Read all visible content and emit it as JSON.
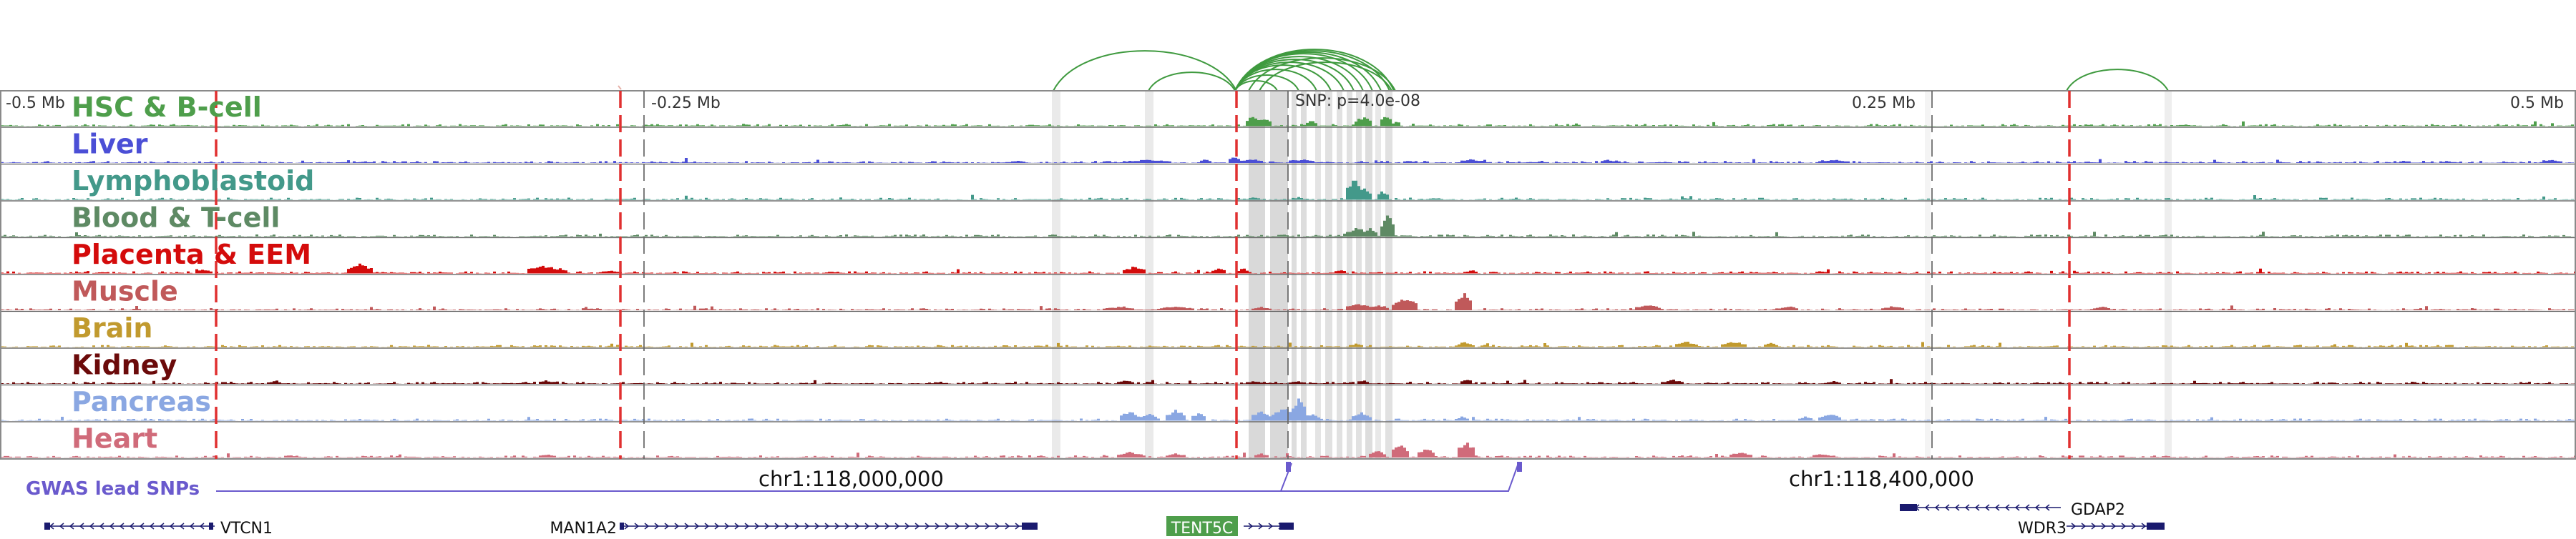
{
  "scale_labels": [
    "-0.5 Mb",
    "-0.25 Mb",
    "0.25 Mb",
    "0.5 Mb"
  ],
  "snp_label": "SNP: p=4.0e-08",
  "tracks": [
    {
      "name": "HSC & B-cell",
      "color": "#4e9e4b"
    },
    {
      "name": "Liver",
      "color": "#4b4fd6"
    },
    {
      "name": "Lymphoblastoid",
      "color": "#43998a"
    },
    {
      "name": "Blood & T-cell",
      "color": "#5e8a64"
    },
    {
      "name": "Placenta & EEM",
      "color": "#d40b0b"
    },
    {
      "name": "Muscle",
      "color": "#c0595a"
    },
    {
      "name": "Brain",
      "color": "#c19a2e"
    },
    {
      "name": "Kidney",
      "color": "#6b0a0a"
    },
    {
      "name": "Pancreas",
      "color": "#8aa7e2"
    },
    {
      "name": "Heart",
      "color": "#d06b7a"
    }
  ],
  "gwas_label": "GWAS lead SNPs",
  "coordinates": [
    "chr1:118,000,000",
    "chr1:118,400,000"
  ],
  "genes": [
    {
      "name": "VTCN1",
      "strand": "-"
    },
    {
      "name": "MAN1A2",
      "strand": "+"
    },
    {
      "name": "TENT5C",
      "strand": "+",
      "highlight_color": "#4e9e4b"
    },
    {
      "name": "GDAP2",
      "strand": "-"
    },
    {
      "name": "WDR3",
      "strand": "+"
    }
  ],
  "colors": {
    "loop": "#3f9a3f",
    "gene": "#1a1a6e",
    "gwas": "#6a5acd",
    "highlight_line": "#e03030",
    "shading": "#d9d9d9"
  }
}
